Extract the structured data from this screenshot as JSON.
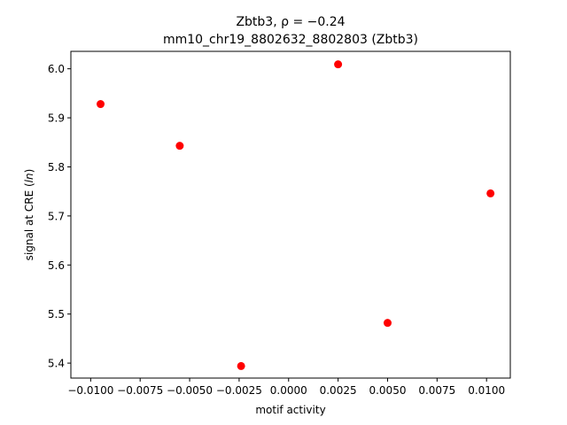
{
  "chart_data": {
    "type": "scatter",
    "title": "Zbtb3, ρ = −0.24",
    "subtitle": "mm10_chr19_8802632_8802803 (Zbtb3)",
    "xlabel": "motif activity",
    "ylabel": "signal at CRE (ln)",
    "xlim": [
      -0.011,
      0.0112
    ],
    "ylim": [
      5.3695,
      6.0355
    ],
    "xticks": [
      -0.01,
      -0.0075,
      -0.005,
      -0.0025,
      0.0,
      0.0025,
      0.005,
      0.0075,
      0.01
    ],
    "xtick_labels": [
      "−0.0100",
      "−0.0075",
      "−0.0050",
      "−0.0025",
      "0.0000",
      "0.0025",
      "0.0050",
      "0.0075",
      "0.0100"
    ],
    "yticks": [
      5.4,
      5.5,
      5.6,
      5.7,
      5.8,
      5.9,
      6.0
    ],
    "ytick_labels": [
      "5.4",
      "5.5",
      "5.6",
      "5.7",
      "5.8",
      "5.9",
      "6.0"
    ],
    "grid": false,
    "marker_color": "#ff0000",
    "points": [
      {
        "x": -0.0095,
        "y": 5.928
      },
      {
        "x": -0.0055,
        "y": 5.843
      },
      {
        "x": -0.0024,
        "y": 5.394
      },
      {
        "x": 0.0025,
        "y": 6.009
      },
      {
        "x": 0.005,
        "y": 5.482
      },
      {
        "x": 0.0102,
        "y": 5.746
      }
    ]
  }
}
